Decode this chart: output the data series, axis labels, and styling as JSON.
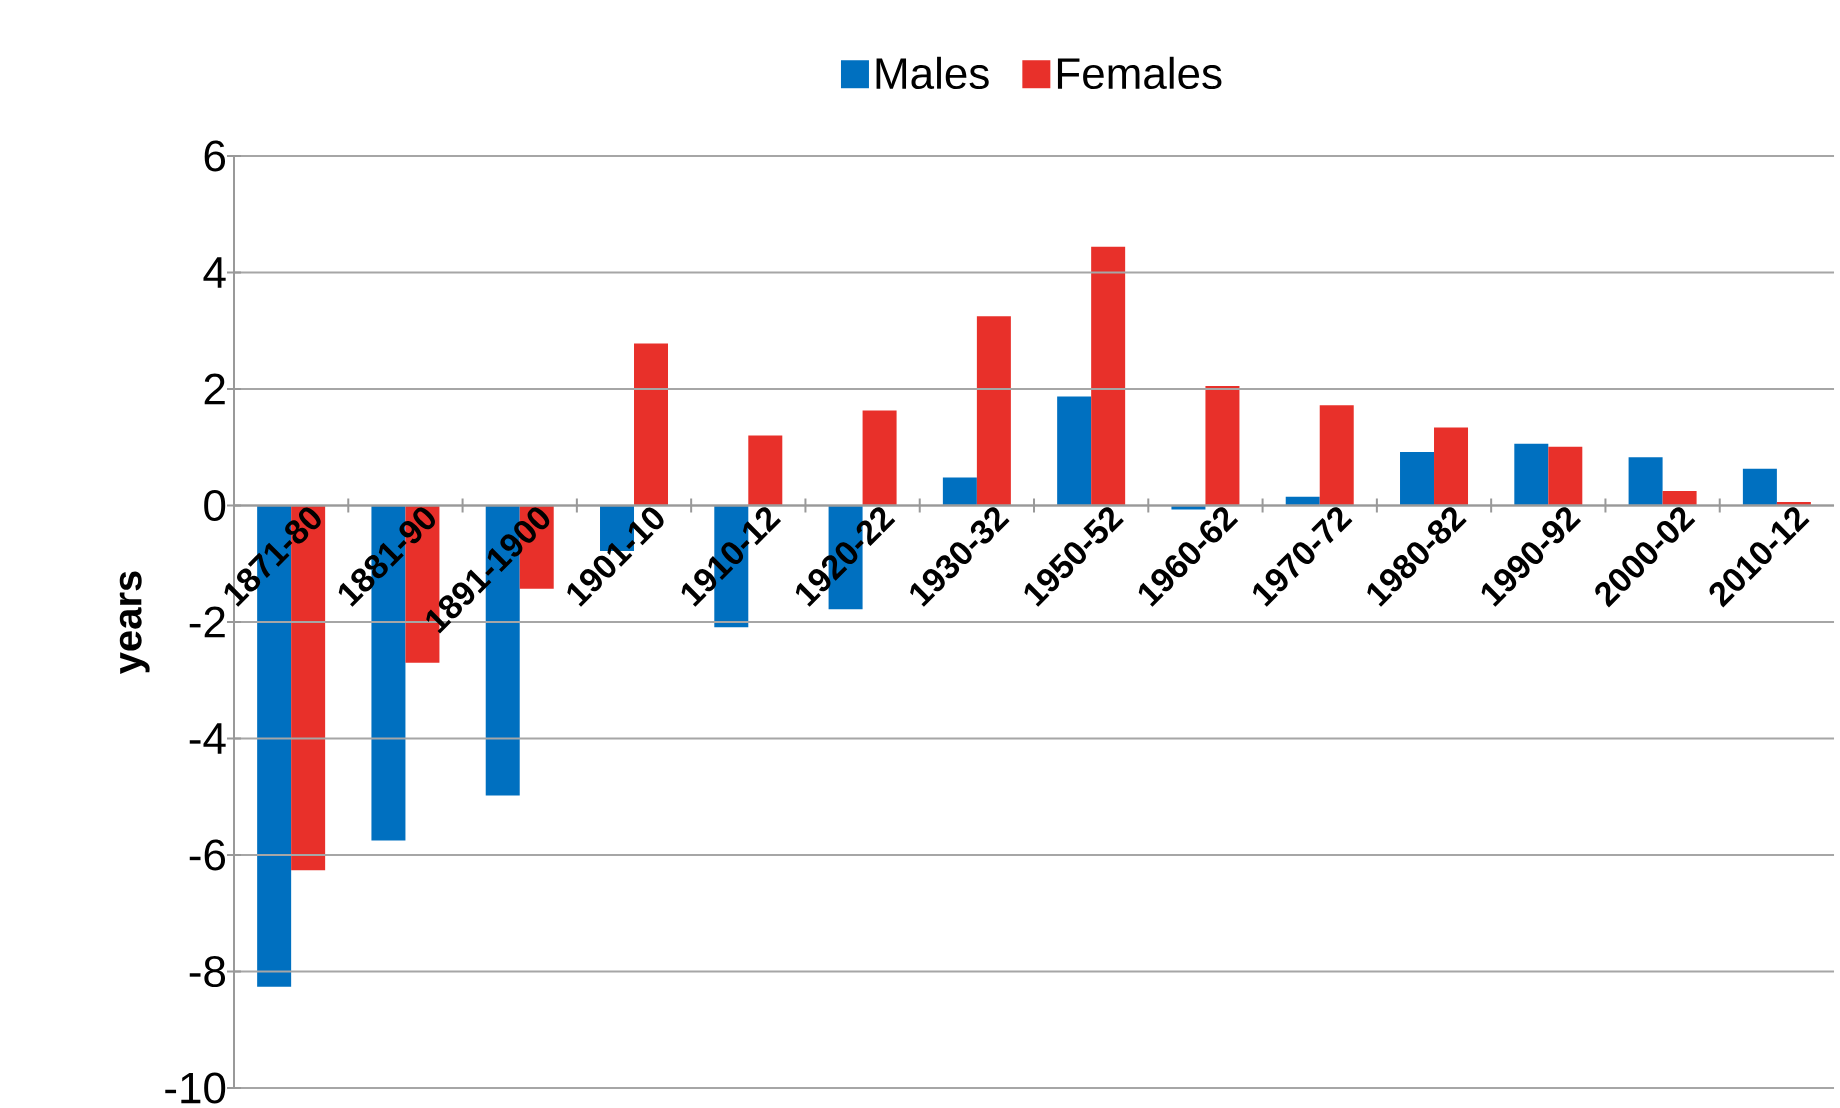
{
  "chart_data": {
    "type": "bar",
    "ylabel": "years",
    "categories": [
      "1871-80",
      "1881-90",
      "1891-1900",
      "1901-10",
      "1910-12",
      "1920-22",
      "1930-32",
      "1950-52",
      "1960-62",
      "1970-72",
      "1980-82",
      "1990-92",
      "2000-02",
      "2010-12"
    ],
    "series": [
      {
        "name": "Males",
        "color": "#0070c0",
        "values": [
          -8.26,
          -5.75,
          -4.98,
          -0.78,
          -2.09,
          -1.78,
          0.48,
          1.87,
          -0.07,
          0.15,
          0.92,
          1.06,
          0.83,
          0.63
        ]
      },
      {
        "name": "Females",
        "color": "#e8302a",
        "values": [
          -6.26,
          -2.7,
          -1.43,
          2.78,
          1.2,
          1.63,
          3.25,
          4.44,
          2.05,
          1.72,
          1.34,
          1.01,
          0.25,
          0.06
        ]
      }
    ],
    "ylim": [
      -10,
      6
    ],
    "yticks": [
      -10,
      -8,
      -6,
      -4,
      -2,
      0,
      2,
      4,
      6
    ],
    "grid": "y",
    "legend": "top"
  }
}
